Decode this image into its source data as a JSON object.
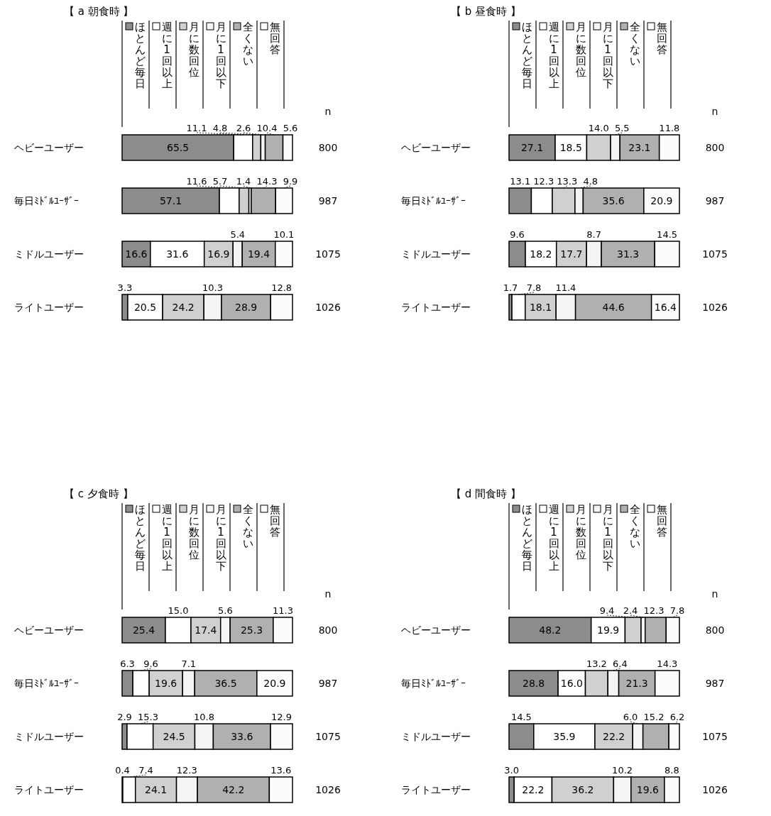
{
  "chart_data": [
    {
      "type": "bar",
      "orientation": "horizontal",
      "stacked": true,
      "title": "【 a 朝食時 】",
      "categories": [
        "ヘビーユーザー",
        "毎日ﾐﾄﾞﾙﾕｰｻﾞｰ",
        "ミドルユーザー",
        "ライトユーザー"
      ],
      "xlim": [
        0,
        100
      ],
      "legend": "top",
      "annotations": [
        "n",
        "800",
        "987",
        "1075",
        "1026"
      ],
      "series": [
        {
          "name": "ほとんど毎日",
          "color": "#8c8c8c",
          "values": [
            65.5,
            57.1,
            16.6,
            3.3
          ],
          "value_labels": [
            "65.5",
            "57.1",
            "16.6",
            "3.3"
          ]
        },
        {
          "name": "週に1回以上",
          "color": "#ffffff",
          "values": [
            11.1,
            11.6,
            31.6,
            20.5
          ],
          "value_labels": [
            "11.1",
            "11.6",
            "31.6",
            "20.5"
          ]
        },
        {
          "name": "月に数回位",
          "color": "#d0d0d0",
          "values": [
            4.8,
            5.7,
            16.9,
            24.2
          ],
          "value_labels": [
            "4.8",
            "5.7",
            "16.9",
            "24.2"
          ]
        },
        {
          "name": "月に1回以下",
          "color": "#f4f4f4",
          "values": [
            2.6,
            1.4,
            5.4,
            10.3
          ],
          "value_labels": [
            "2.6",
            "1.4",
            "5.4",
            "10.3"
          ]
        },
        {
          "name": "全くない",
          "color": "#b0b0b0",
          "values": [
            10.4,
            14.3,
            19.4,
            28.9
          ],
          "value_labels": [
            "10.4",
            "14.3",
            "19.4",
            "28.9"
          ]
        },
        {
          "name": "無回答",
          "color": "#fcfcfc",
          "values": [
            5.6,
            9.9,
            10.1,
            12.8
          ],
          "value_labels": [
            "5.6",
            "9.9",
            "10.1",
            "12.8"
          ]
        }
      ]
    },
    {
      "type": "bar",
      "orientation": "horizontal",
      "stacked": true,
      "title": "【 b 昼食時 】",
      "categories": [
        "ヘビーユーザー",
        "毎日ﾐﾄﾞﾙﾕｰｻﾞｰ",
        "ミドルユーザー",
        "ライトユーザー"
      ],
      "xlim": [
        0,
        100
      ],
      "legend": "top",
      "annotations": [
        "n",
        "800",
        "987",
        "1075",
        "1026"
      ],
      "series": [
        {
          "name": "ほとんど毎日",
          "color": "#8c8c8c",
          "values": [
            27.1,
            13.1,
            9.6,
            1.7
          ],
          "value_labels": [
            "27.1",
            "13.1",
            "9.6",
            "1.7"
          ]
        },
        {
          "name": "週に1回以上",
          "color": "#ffffff",
          "values": [
            18.5,
            12.3,
            18.2,
            7.8
          ],
          "value_labels": [
            "18.5",
            "12.3",
            "18.2",
            "7.8"
          ]
        },
        {
          "name": "月に数回位",
          "color": "#d0d0d0",
          "values": [
            14.0,
            13.3,
            17.7,
            18.1
          ],
          "value_labels": [
            "14.0",
            "13.3",
            "17.7",
            "18.1"
          ]
        },
        {
          "name": "月に1回以下",
          "color": "#f4f4f4",
          "values": [
            5.5,
            4.8,
            8.7,
            11.4
          ],
          "value_labels": [
            "5.5",
            "4.8",
            "8.7",
            "11.4"
          ]
        },
        {
          "name": "全くない",
          "color": "#b0b0b0",
          "values": [
            23.1,
            35.6,
            31.3,
            44.6
          ],
          "value_labels": [
            "23.1",
            "35.6",
            "31.3",
            "44.6"
          ]
        },
        {
          "name": "無回答",
          "color": "#fcfcfc",
          "values": [
            11.8,
            20.9,
            14.5,
            16.4
          ],
          "value_labels": [
            "11.8",
            "20.9",
            "14.5",
            "16.4"
          ]
        }
      ]
    },
    {
      "type": "bar",
      "orientation": "horizontal",
      "stacked": true,
      "title": "【 c 夕食時 】",
      "categories": [
        "ヘビーユーザー",
        "毎日ﾐﾄﾞﾙﾕｰｻﾞｰ",
        "ミドルユーザー",
        "ライトユーザー"
      ],
      "xlim": [
        0,
        100
      ],
      "legend": "top",
      "annotations": [
        "n",
        "800",
        "987",
        "1075",
        "1026"
      ],
      "series": [
        {
          "name": "ほとんど毎日",
          "color": "#8c8c8c",
          "values": [
            25.4,
            6.3,
            2.9,
            0.4
          ],
          "value_labels": [
            "25.4",
            "6.3",
            "2.9",
            "0.4"
          ]
        },
        {
          "name": "週に1回以上",
          "color": "#ffffff",
          "values": [
            15.0,
            9.6,
            15.3,
            7.4
          ],
          "value_labels": [
            "15.0",
            "9.6",
            "15.3",
            "7.4"
          ]
        },
        {
          "name": "月に数回位",
          "color": "#d0d0d0",
          "values": [
            17.4,
            19.6,
            24.5,
            24.1
          ],
          "value_labels": [
            "17.4",
            "19.6",
            "24.5",
            "24.1"
          ]
        },
        {
          "name": "月に1回以下",
          "color": "#f4f4f4",
          "values": [
            5.6,
            7.1,
            10.8,
            12.3
          ],
          "value_labels": [
            "5.6",
            "7.1",
            "10.8",
            "12.3"
          ]
        },
        {
          "name": "全くない",
          "color": "#b0b0b0",
          "values": [
            25.3,
            36.5,
            33.6,
            42.2
          ],
          "value_labels": [
            "25.3",
            "36.5",
            "33.6",
            "42.2"
          ]
        },
        {
          "name": "無回答",
          "color": "#fcfcfc",
          "values": [
            11.3,
            20.9,
            12.9,
            13.6
          ],
          "value_labels": [
            "11.3",
            "20.9",
            "12.9",
            "13.6"
          ]
        }
      ]
    },
    {
      "type": "bar",
      "orientation": "horizontal",
      "stacked": true,
      "title": "【 d 間食時 】",
      "categories": [
        "ヘビーユーザー",
        "毎日ﾐﾄﾞﾙﾕｰｻﾞｰ",
        "ミドルユーザー",
        "ライトユーザー"
      ],
      "xlim": [
        0,
        100
      ],
      "legend": "top",
      "annotations": [
        "n",
        "800",
        "987",
        "1075",
        "1026"
      ],
      "series": [
        {
          "name": "ほとんど毎日",
          "color": "#8c8c8c",
          "values": [
            48.2,
            28.8,
            14.5,
            3.0
          ],
          "value_labels": [
            "48.2",
            "28.8",
            "14.5",
            "3.0"
          ]
        },
        {
          "name": "週に1回以上",
          "color": "#ffffff",
          "values": [
            19.9,
            16.0,
            35.9,
            22.2
          ],
          "value_labels": [
            "19.9",
            "16.0",
            "35.9",
            "22.2"
          ]
        },
        {
          "name": "月に数回位",
          "color": "#d0d0d0",
          "values": [
            9.4,
            13.2,
            22.2,
            36.2
          ],
          "value_labels": [
            "9.4",
            "13.2",
            "22.2",
            "36.2"
          ]
        },
        {
          "name": "月に1回以下",
          "color": "#f4f4f4",
          "values": [
            2.4,
            6.4,
            6.0,
            10.2
          ],
          "value_labels": [
            "2.4",
            "6.4",
            "6.0",
            "10.2"
          ]
        },
        {
          "name": "全くない",
          "color": "#b0b0b0",
          "values": [
            12.3,
            21.3,
            15.2,
            19.6
          ],
          "value_labels": [
            "12.3",
            "21.3",
            "15.2",
            "19.6"
          ]
        },
        {
          "name": "無回答",
          "color": "#fcfcfc",
          "values": [
            7.8,
            14.3,
            6.2,
            8.8
          ],
          "value_labels": [
            "7.8",
            "14.3",
            "6.2",
            "8.8"
          ]
        }
      ]
    }
  ]
}
